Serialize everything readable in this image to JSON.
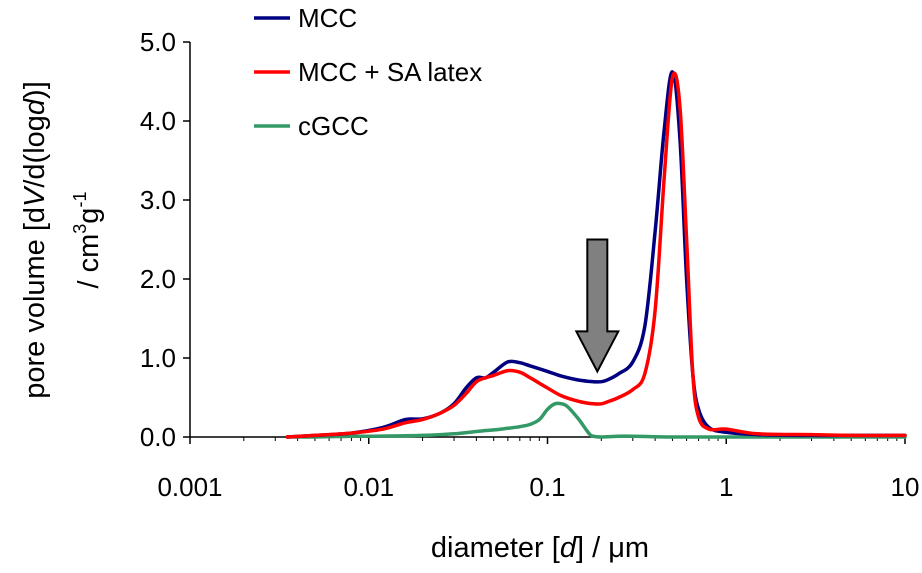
{
  "chart_data": {
    "type": "line",
    "xscale": "log",
    "xlim": [
      0.001,
      10
    ],
    "ylim": [
      0,
      5.0
    ],
    "x_ticks": [
      "0.001",
      "0.01",
      "0.1",
      "1",
      "10"
    ],
    "y_ticks": [
      "0.0",
      "1.0",
      "2.0",
      "3.0",
      "4.0",
      "5.0"
    ],
    "xlabel": {
      "prefix": "diameter [",
      "var": "d",
      "suffix": "] / μm"
    },
    "ylabel": {
      "line1": {
        "a": "pore volume [d",
        "b": "V",
        "c": "/d(log",
        "d": "d",
        "e": ")]"
      },
      "line2": {
        "a": "/ cm",
        "sup3": "3",
        "b": "g",
        "supneg": "-1"
      }
    },
    "grid": false,
    "legend_position": "top-center",
    "series": [
      {
        "name": "MCC",
        "color": "#000080",
        "x": [
          0.0035,
          0.005,
          0.008,
          0.012,
          0.016,
          0.02,
          0.025,
          0.03,
          0.035,
          0.04,
          0.045,
          0.05,
          0.06,
          0.07,
          0.08,
          0.1,
          0.12,
          0.15,
          0.18,
          0.2,
          0.22,
          0.25,
          0.3,
          0.35,
          0.4,
          0.45,
          0.5,
          0.55,
          0.6,
          0.65,
          0.7,
          0.8,
          1.0,
          1.5,
          3,
          5,
          10
        ],
        "y": [
          0.0,
          0.02,
          0.05,
          0.12,
          0.22,
          0.23,
          0.3,
          0.42,
          0.62,
          0.75,
          0.75,
          0.82,
          0.95,
          0.94,
          0.9,
          0.83,
          0.77,
          0.72,
          0.7,
          0.7,
          0.73,
          0.8,
          0.95,
          1.4,
          2.6,
          3.9,
          4.62,
          3.8,
          2.0,
          0.8,
          0.35,
          0.12,
          0.06,
          0.03,
          0.02,
          0.02,
          0.02
        ]
      },
      {
        "name": "MCC + SA latex",
        "color": "#ff0000",
        "x": [
          0.0035,
          0.005,
          0.008,
          0.012,
          0.016,
          0.02,
          0.025,
          0.03,
          0.035,
          0.04,
          0.045,
          0.05,
          0.06,
          0.07,
          0.08,
          0.1,
          0.12,
          0.15,
          0.18,
          0.2,
          0.22,
          0.25,
          0.3,
          0.35,
          0.4,
          0.45,
          0.5,
          0.55,
          0.6,
          0.65,
          0.7,
          0.8,
          1.0,
          1.5,
          3,
          5,
          10
        ],
        "y": [
          0.0,
          0.02,
          0.05,
          0.1,
          0.18,
          0.22,
          0.3,
          0.4,
          0.55,
          0.7,
          0.75,
          0.78,
          0.84,
          0.82,
          0.75,
          0.62,
          0.52,
          0.45,
          0.42,
          0.42,
          0.45,
          0.5,
          0.6,
          0.8,
          1.6,
          3.3,
          4.55,
          4.2,
          2.5,
          0.8,
          0.25,
          0.1,
          0.1,
          0.04,
          0.03,
          0.02,
          0.02
        ]
      },
      {
        "name": "cGCC",
        "color": "#339966",
        "x": [
          0.0035,
          0.005,
          0.008,
          0.01,
          0.02,
          0.03,
          0.04,
          0.05,
          0.06,
          0.07,
          0.08,
          0.09,
          0.1,
          0.11,
          0.12,
          0.13,
          0.15,
          0.17,
          0.18,
          0.2,
          0.25,
          0.3,
          0.5,
          1,
          3,
          10
        ],
        "y": [
          0.0,
          0.0,
          0.01,
          0.01,
          0.02,
          0.04,
          0.07,
          0.09,
          0.11,
          0.13,
          0.16,
          0.22,
          0.35,
          0.42,
          0.42,
          0.38,
          0.22,
          0.05,
          0.01,
          0.0,
          0.01,
          0.01,
          0.0,
          0.0,
          0.0,
          0.0
        ]
      }
    ],
    "annotations": [
      {
        "type": "arrow-down",
        "x": 0.19,
        "y_top": 2.5,
        "y_tip": 0.83,
        "color": "#808080"
      }
    ]
  }
}
